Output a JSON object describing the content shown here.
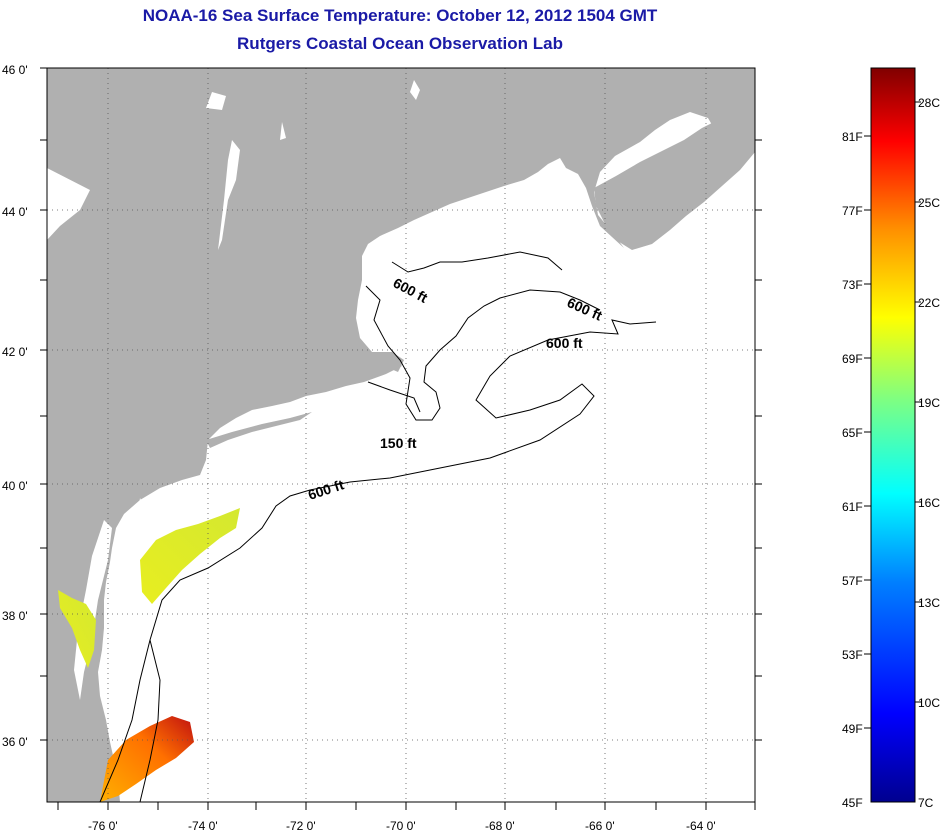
{
  "title": "NOAA-16 Sea Surface Temperature:  October 12, 2012 1504 GMT",
  "subtitle": "Rutgers Coastal Ocean Observation Lab",
  "map": {
    "lat_labels": [
      "46 0'",
      "44 0'",
      "42 0'",
      "40 0'",
      "38 0'",
      "36 0'"
    ],
    "lon_labels": [
      "-76 0'",
      "-74 0'",
      "-72 0'",
      "-70 0'",
      "-68 0'",
      "-66 0'",
      "-64 0'"
    ],
    "contours": [
      "600 ft",
      "600 ft",
      "600 ft",
      "150 ft",
      "600 ft"
    ],
    "land_color": "#b0b0b0",
    "grid": "dotted"
  },
  "colorbar": {
    "fahrenheit": [
      "81F",
      "77F",
      "73F",
      "69F",
      "65F",
      "61F",
      "57F",
      "53F",
      "49F",
      "45F"
    ],
    "celsius": [
      "28C",
      "25C",
      "22C",
      "19C",
      "16C",
      "13C",
      "10C",
      "7C"
    ]
  }
}
